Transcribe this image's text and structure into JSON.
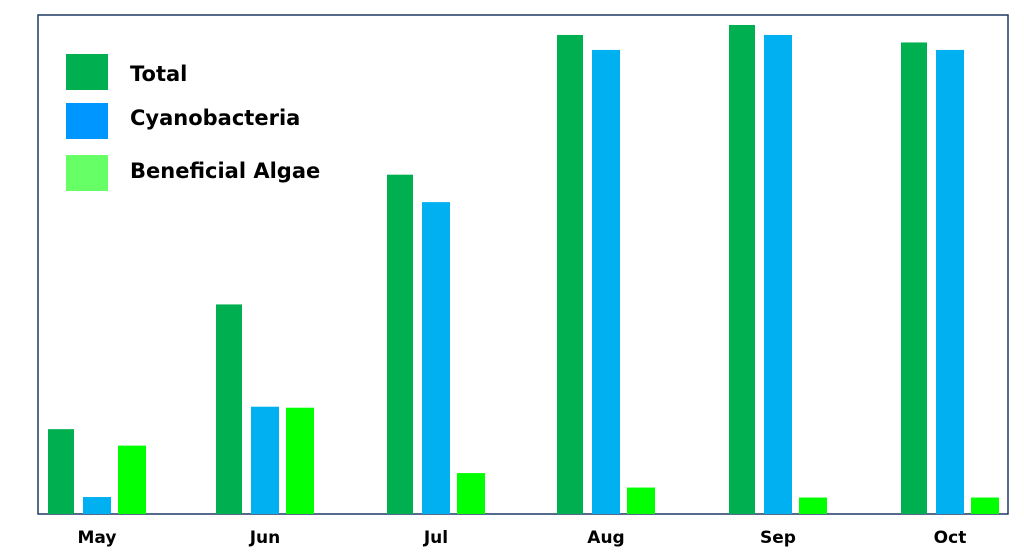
{
  "chart_data": {
    "type": "bar",
    "title": "",
    "xlabel": "",
    "ylabel": "",
    "ylim": [
      0,
      100
    ],
    "grid": false,
    "legend_position": "top-left",
    "categories": [
      "May",
      "Jun",
      "Jul",
      "Aug",
      "Sep",
      "Oct"
    ],
    "series": [
      {
        "name": "Total",
        "values": [
          17,
          42,
          68,
          96,
          98,
          94.5
        ],
        "color": "#00B050",
        "legend_color": "#00B050"
      },
      {
        "name": "Cyanobacteria",
        "values": [
          3.4,
          21.5,
          62.5,
          93,
          96,
          93
        ],
        "color": "#00B0F0",
        "legend_color": "#0096FF"
      },
      {
        "name": "Beneficial Algae",
        "values": [
          13.7,
          21.3,
          8.2,
          5.3,
          3.3,
          3.3
        ],
        "color": "#00FF00",
        "legend_color": "#66FF66"
      }
    ]
  }
}
